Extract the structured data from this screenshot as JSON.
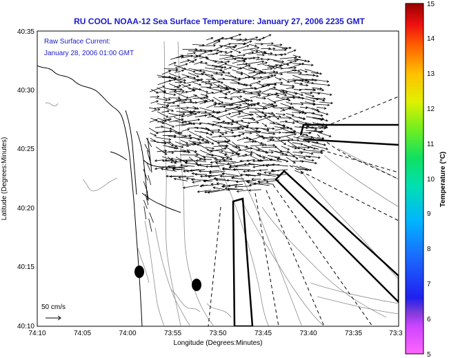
{
  "title": "RU COOL  NOAA-12  Sea Surface Temperature:  January 27, 2006 2235 GMT",
  "current_note": {
    "line1": "Raw Surface Current:",
    "line2": "January 28, 2006 01:00 GMT"
  },
  "scale": {
    "label": "50 cm/s"
  },
  "axes": {
    "xlabel": "Longitude (Degrees:Minutes)",
    "ylabel": "Latitude (Degrees:Minutes)",
    "x_ticks": [
      "74:10",
      "74:05",
      "74:00",
      "73:55",
      "73:50",
      "73:45",
      "73:40",
      "73:35",
      "73:3"
    ],
    "y_ticks": [
      "40:35",
      "40:30",
      "40:25",
      "40:20",
      "40:15",
      "40:10"
    ]
  },
  "colorbar": {
    "label": "Temperature (°C)",
    "ticks": [
      "15",
      "14",
      "13",
      "12",
      "11",
      "10",
      "9",
      "8",
      "7",
      "6",
      "5"
    ],
    "range": [
      5,
      15
    ]
  }
}
